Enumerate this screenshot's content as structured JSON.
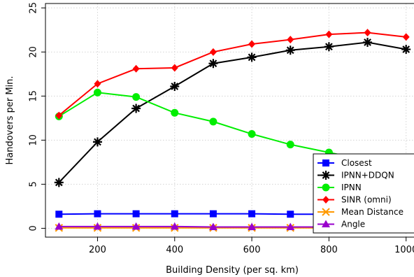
{
  "chart_data": {
    "type": "line",
    "title": "",
    "xlabel": "Building Density (per sq. km)",
    "ylabel": "Handovers per Min.",
    "xlim": [
      65,
      1035
    ],
    "ylim": [
      -1,
      25.5
    ],
    "xticks": [
      200,
      400,
      600,
      800,
      1000
    ],
    "yticks": [
      0,
      5,
      10,
      15,
      20,
      25
    ],
    "grid": true,
    "legend_position": "bottom-right",
    "x": [
      100,
      200,
      300,
      400,
      500,
      600,
      700,
      800,
      900,
      1000
    ],
    "series": [
      {
        "name": "Closest",
        "color": "#0000ff",
        "marker": "square",
        "values": [
          1.6,
          1.65,
          1.65,
          1.65,
          1.65,
          1.65,
          1.6,
          1.6,
          1.6,
          1.6
        ]
      },
      {
        "name": "IPNN+DDQN",
        "color": "#000000",
        "marker": "asterisk",
        "values": [
          5.2,
          9.8,
          13.6,
          16.1,
          18.7,
          19.4,
          20.2,
          20.6,
          21.1,
          20.3
        ]
      },
      {
        "name": "IPNN",
        "color": "#00ee00",
        "marker": "circle",
        "values": [
          12.7,
          15.4,
          14.9,
          13.1,
          12.1,
          10.7,
          9.5,
          8.6,
          7.7,
          7.0
        ]
      },
      {
        "name": "SINR (omni)",
        "color": "#ff0000",
        "marker": "diamond",
        "values": [
          12.8,
          16.4,
          18.1,
          18.2,
          20.0,
          20.9,
          21.4,
          22.0,
          22.2,
          21.7
        ]
      },
      {
        "name": "Mean Distance",
        "color": "#ff9900",
        "marker": "x",
        "values": [
          0.05,
          0.05,
          0.05,
          0.05,
          0.05,
          0.05,
          0.05,
          0.05,
          0.05,
          0.05
        ]
      },
      {
        "name": "Angle",
        "color": "#9900cc",
        "marker": "triangle",
        "values": [
          0.2,
          0.2,
          0.2,
          0.2,
          0.15,
          0.15,
          0.15,
          0.15,
          0.15,
          0.15
        ]
      }
    ]
  }
}
